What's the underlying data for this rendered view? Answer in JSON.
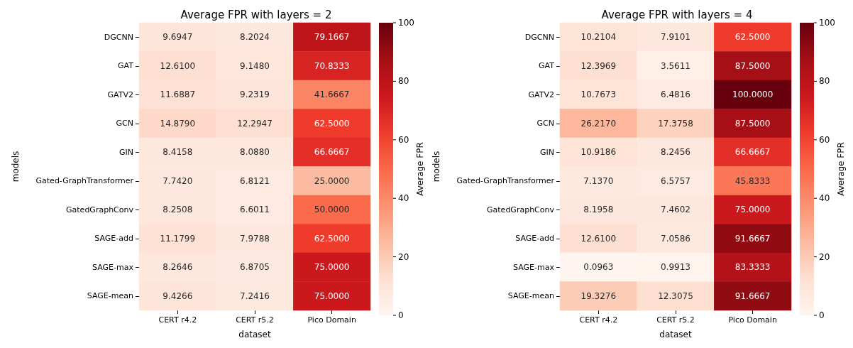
{
  "chart_data": [
    {
      "type": "heatmap",
      "title": "Average FPR with layers = 2",
      "xlabel": "dataset",
      "ylabel": "models",
      "clabel": "Average FPR",
      "categories": [
        "CERT r4.2",
        "CERT r5.2",
        "Pico Domain"
      ],
      "y_categories": [
        "DGCNN",
        "GAT",
        "GATV2",
        "GCN",
        "GIN",
        "Gated-GraphTransformer",
        "GatedGraphConv",
        "SAGE-add",
        "SAGE-max",
        "SAGE-mean"
      ],
      "cells": [
        [
          9.6947,
          8.2024,
          79.1667
        ],
        [
          12.61,
          9.148,
          70.8333
        ],
        [
          11.6887,
          9.2319,
          41.6667
        ],
        [
          14.879,
          12.2947,
          62.5
        ],
        [
          8.4158,
          8.088,
          66.6667
        ],
        [
          7.742,
          6.8121,
          25
        ],
        [
          8.2508,
          6.6011,
          50
        ],
        [
          11.1799,
          7.9788,
          62.5
        ],
        [
          8.2646,
          6.8705,
          75
        ],
        [
          9.4266,
          7.2416,
          75
        ]
      ],
      "cell_labels": [
        [
          "9.6947",
          "8.2024",
          "79.1667"
        ],
        [
          "12.6100",
          "9.1480",
          "70.8333"
        ],
        [
          "11.6887",
          "9.2319",
          "41.6667"
        ],
        [
          "14.8790",
          "12.2947",
          "62.5000"
        ],
        [
          "8.4158",
          "8.0880",
          "66.6667"
        ],
        [
          "7.7420",
          "6.8121",
          "25.0000"
        ],
        [
          "8.2508",
          "6.6011",
          "50.0000"
        ],
        [
          "11.1799",
          "7.9788",
          "62.5000"
        ],
        [
          "8.2646",
          "6.8705",
          "75.0000"
        ],
        [
          "9.4266",
          "7.2416",
          "75.0000"
        ]
      ],
      "clim": [
        0,
        100
      ],
      "cticks": [
        0,
        20,
        40,
        60,
        80,
        100
      ]
    },
    {
      "type": "heatmap",
      "title": "Average FPR with layers = 4",
      "xlabel": "dataset",
      "ylabel": "models",
      "clabel": "Average FPR",
      "categories": [
        "CERT r4.2",
        "CERT r5.2",
        "Pico Domain"
      ],
      "y_categories": [
        "DGCNN",
        "GAT",
        "GATV2",
        "GCN",
        "GIN",
        "Gated-GraphTransformer",
        "GatedGraphConv",
        "SAGE-add",
        "SAGE-max",
        "SAGE-mean"
      ],
      "cells": [
        [
          10.2104,
          7.9101,
          62.5
        ],
        [
          12.3969,
          3.5611,
          87.5
        ],
        [
          10.7673,
          6.4816,
          100
        ],
        [
          26.217,
          17.3758,
          87.5
        ],
        [
          10.9186,
          8.2456,
          66.6667
        ],
        [
          7.137,
          6.5757,
          45.8333
        ],
        [
          8.1958,
          7.4602,
          75
        ],
        [
          12.61,
          7.0586,
          91.6667
        ],
        [
          0.0963,
          0.9913,
          83.3333
        ],
        [
          19.3276,
          12.3075,
          91.6667
        ]
      ],
      "cell_labels": [
        [
          "10.2104",
          "7.9101",
          "62.5000"
        ],
        [
          "12.3969",
          "3.5611",
          "87.5000"
        ],
        [
          "10.7673",
          "6.4816",
          "100.0000"
        ],
        [
          "26.2170",
          "17.3758",
          "87.5000"
        ],
        [
          "10.9186",
          "8.2456",
          "66.6667"
        ],
        [
          "7.1370",
          "6.5757",
          "45.8333"
        ],
        [
          "8.1958",
          "7.4602",
          "75.0000"
        ],
        [
          "12.6100",
          "7.0586",
          "91.6667"
        ],
        [
          "0.0963",
          "0.9913",
          "83.3333"
        ],
        [
          "19.3276",
          "12.3075",
          "91.6667"
        ]
      ],
      "clim": [
        0,
        100
      ],
      "cticks": [
        0,
        20,
        40,
        60,
        80,
        100
      ]
    }
  ]
}
